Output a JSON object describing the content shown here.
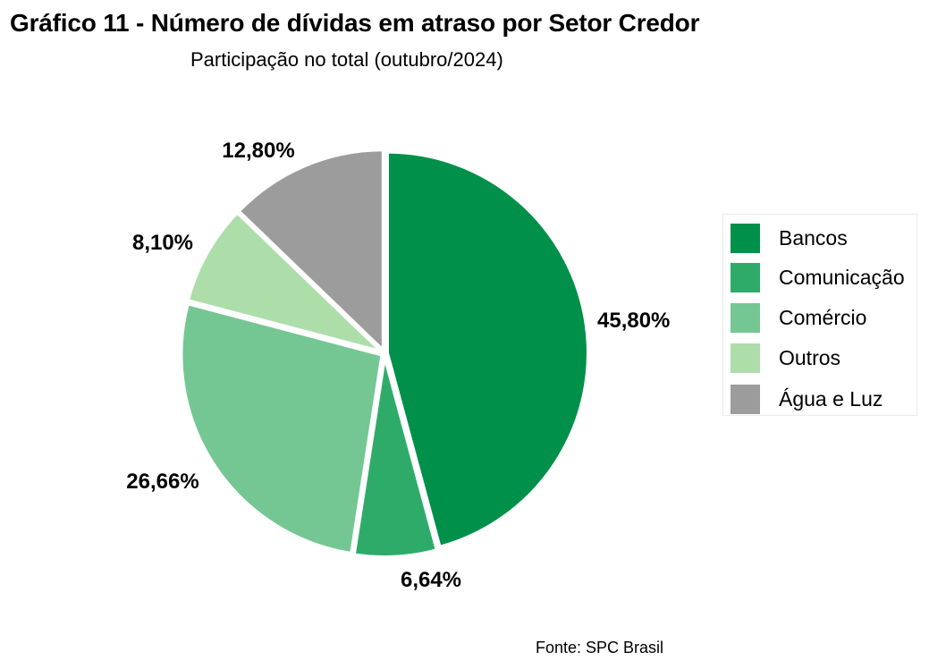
{
  "title": "Gráfico 11 - Número de dívidas em atraso por Setor Credor",
  "subtitle": "Participação no total (outubro/2024)",
  "source": "Fonte: SPC Brasil",
  "chart_data": {
    "type": "pie",
    "title": "Gráfico 11 - Número de dívidas em atraso por Setor Credor",
    "subtitle": "Participação no total (outubro/2024)",
    "categories": [
      "Bancos",
      "Comunicação",
      "Comércio",
      "Outros",
      "Água e Luz"
    ],
    "values": [
      45.8,
      6.64,
      26.66,
      8.1,
      12.8
    ],
    "value_labels": [
      "45,80%",
      "6,64%",
      "26,66%",
      "8,10%",
      "12,80%"
    ],
    "colors": [
      "#00904a",
      "#2fab69",
      "#74c792",
      "#addeaa",
      "#9c9c9c"
    ],
    "slice_border_color": "#ffffff",
    "start_angle": "12 o'clock",
    "direction": "clockwise",
    "legend_position": "right",
    "grid": false
  }
}
